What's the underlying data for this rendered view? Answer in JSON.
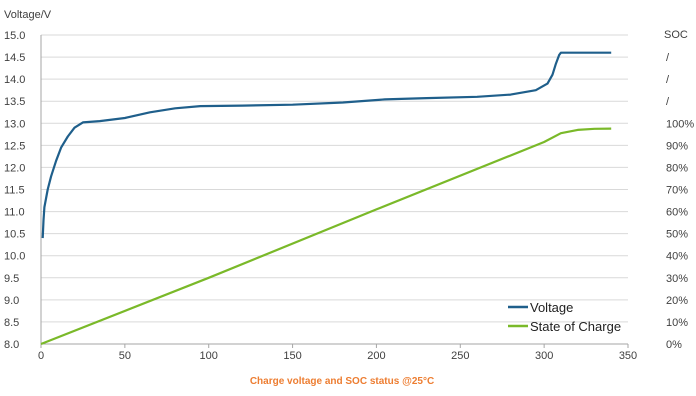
{
  "chart_data": {
    "type": "line",
    "title": "",
    "caption": "Charge voltage and SOC status @25°C",
    "xlabel": "",
    "ylabel": "Voltage/V",
    "y2label": "SOC",
    "xlim": [
      0,
      350
    ],
    "ylim": [
      8.0,
      15.0
    ],
    "x_ticks": [
      "0",
      "50",
      "100",
      "150",
      "200",
      "250",
      "300",
      "350"
    ],
    "y_ticks": [
      "15.0",
      "14.5",
      "14.0",
      "13.5",
      "13.0",
      "12.5",
      "12.0",
      "11.5",
      "11.0",
      "10.5",
      "10.0",
      "9.5",
      "9.0",
      "8.5",
      "8.0"
    ],
    "y2_ticks": [
      "/",
      "/",
      "/",
      "100%",
      "90%",
      "80%",
      "70%",
      "60%",
      "50%",
      "40%",
      "30%",
      "20%",
      "10%",
      "0%"
    ],
    "grid": true,
    "legend_position": "bottom-right",
    "colors": {
      "voltage": "#1F5F8B",
      "soc": "#7AB929",
      "grid": "#D9D9D9",
      "axis": "#A6A6A6",
      "caption": "#ED7D31"
    },
    "series": [
      {
        "name": "Voltage",
        "axis": "left",
        "points": [
          [
            1,
            10.4
          ],
          [
            1.5,
            10.8
          ],
          [
            2,
            11.1
          ],
          [
            4,
            11.5
          ],
          [
            6,
            11.8
          ],
          [
            9,
            12.15
          ],
          [
            12,
            12.45
          ],
          [
            16,
            12.7
          ],
          [
            20,
            12.9
          ],
          [
            25,
            13.02
          ],
          [
            35,
            13.05
          ],
          [
            50,
            13.12
          ],
          [
            65,
            13.25
          ],
          [
            80,
            13.34
          ],
          [
            95,
            13.39
          ],
          [
            120,
            13.4
          ],
          [
            150,
            13.42
          ],
          [
            180,
            13.47
          ],
          [
            205,
            13.54
          ],
          [
            230,
            13.57
          ],
          [
            260,
            13.6
          ],
          [
            280,
            13.65
          ],
          [
            295,
            13.75
          ],
          [
            302,
            13.9
          ],
          [
            305,
            14.1
          ],
          [
            307,
            14.35
          ],
          [
            309,
            14.55
          ],
          [
            310,
            14.6
          ],
          [
            340,
            14.6
          ]
        ]
      },
      {
        "name": "State of Charge",
        "axis": "right",
        "points": [
          [
            0,
            0
          ],
          [
            100,
            30
          ],
          [
            200,
            61
          ],
          [
            300,
            91.5
          ],
          [
            310,
            95.5
          ],
          [
            320,
            97
          ],
          [
            330,
            97.5
          ],
          [
            340,
            97.6
          ]
        ]
      }
    ]
  }
}
